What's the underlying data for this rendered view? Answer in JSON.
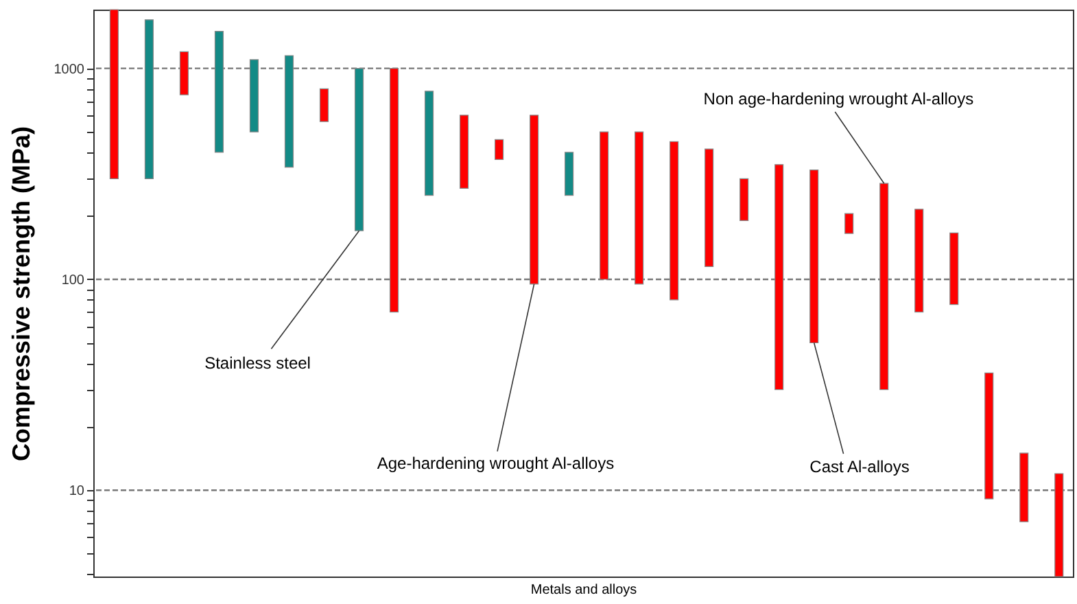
{
  "chart_data": {
    "type": "bar",
    "xlabel": "Metals and alloys",
    "ylabel": "Compressive strength (MPa)",
    "categories": [
      null,
      null,
      null,
      null,
      null,
      null,
      null,
      null,
      null,
      null,
      null,
      null,
      null,
      null,
      null,
      null,
      null,
      null,
      null,
      null,
      null,
      null,
      null,
      null,
      null,
      null,
      null,
      null
    ],
    "base": [
      300,
      300,
      750,
      400,
      500,
      340,
      560,
      170,
      70,
      250,
      270,
      370,
      95,
      250,
      100,
      95,
      80,
      115,
      190,
      30,
      50,
      165,
      30,
      70,
      76,
      9.1,
      7.1,
      3.9
    ],
    "values": [
      1600,
      1400,
      450,
      1100,
      600,
      810,
      240,
      830,
      930,
      530,
      330,
      90,
      505,
      150,
      400,
      405,
      370,
      300,
      110,
      320,
      280,
      40,
      255,
      145,
      90,
      26.9,
      7.9,
      8.1
    ],
    "colors": [
      "#ff0000",
      "#138a86",
      "#ff0000",
      "#138a86",
      "#138a86",
      "#138a86",
      "#ff0000",
      "#138a86",
      "#ff0000",
      "#138a86",
      "#ff0000",
      "#ff0000",
      "#ff0000",
      "#138a86",
      "#ff0000",
      "#ff0000",
      "#ff0000",
      "#ff0000",
      "#ff0000",
      "#ff0000",
      "#ff0000",
      "#ff0000",
      "#ff0000",
      "#ff0000",
      "#ff0000",
      "#ff0000",
      "#ff0000",
      "#ff0000"
    ],
    "log": true,
    "ylim": [
      3.9,
      1900
    ],
    "yticks": [
      {
        "value": 4,
        "label": null
      },
      {
        "value": 5,
        "label": null
      },
      {
        "value": 6,
        "label": null
      },
      {
        "value": 7,
        "label": null
      },
      {
        "value": 8,
        "label": null
      },
      {
        "value": 9,
        "label": null
      },
      10,
      {
        "value": 20,
        "label": null
      },
      {
        "value": 30,
        "label": null
      },
      {
        "value": 40,
        "label": null
      },
      {
        "value": 50,
        "label": null
      },
      {
        "value": 60,
        "label": null
      },
      {
        "value": 70,
        "label": null
      },
      {
        "value": 80,
        "label": null
      },
      {
        "value": 90,
        "label": null
      },
      100,
      {
        "value": 200,
        "label": null
      },
      {
        "value": 300,
        "label": null
      },
      {
        "value": 400,
        "label": null
      },
      {
        "value": 500,
        "label": null
      },
      {
        "value": 600,
        "label": null
      },
      {
        "value": 700,
        "label": null
      },
      {
        "value": 800,
        "label": null
      },
      {
        "value": 900,
        "label": null
      },
      1000
    ],
    "grid": "y",
    "annotations": [
      "Stainless steel",
      "Age-hardening wrought Al-alloys",
      "Non age-hardening wrought Al-alloys",
      "Cast Al-alloys"
    ]
  }
}
